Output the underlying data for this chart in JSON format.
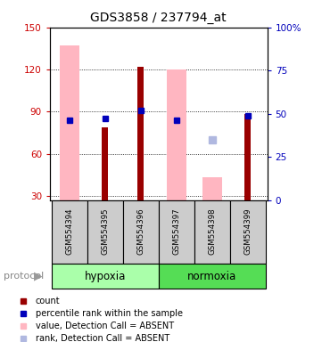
{
  "title": "GDS3858 / 237794_at",
  "samples": [
    "GSM554394",
    "GSM554395",
    "GSM554396",
    "GSM554397",
    "GSM554398",
    "GSM554399"
  ],
  "ylim_left": [
    27,
    150
  ],
  "ylim_right": [
    0,
    100
  ],
  "yticks_left": [
    30,
    60,
    90,
    120,
    150
  ],
  "yticks_right": [
    0,
    25,
    50,
    75,
    100
  ],
  "baseline": 27,
  "count_values": [
    null,
    79,
    122,
    null,
    null,
    88
  ],
  "count_color": "#990000",
  "percentile_left_values": [
    84,
    85,
    91,
    84,
    null,
    87
  ],
  "percentile_color": "#0000bb",
  "absent_value_values": [
    137,
    null,
    null,
    120,
    43,
    null
  ],
  "absent_value_color": "#ffb6c1",
  "absent_rank_left_values": [
    null,
    null,
    null,
    null,
    70,
    null
  ],
  "absent_rank_color": "#b0b8e0",
  "hypoxia_color": "#aaffaa",
  "normoxia_color": "#55dd55",
  "protocol_label": "protocol",
  "hypoxia_label": "hypoxia",
  "normoxia_label": "normoxia",
  "legend_items": [
    {
      "label": "count",
      "color": "#990000"
    },
    {
      "label": "percentile rank within the sample",
      "color": "#0000bb"
    },
    {
      "label": "value, Detection Call = ABSENT",
      "color": "#ffb6c1"
    },
    {
      "label": "rank, Detection Call = ABSENT",
      "color": "#b0b8e0"
    }
  ],
  "background_color": "#ffffff",
  "sample_box_color": "#cccccc"
}
